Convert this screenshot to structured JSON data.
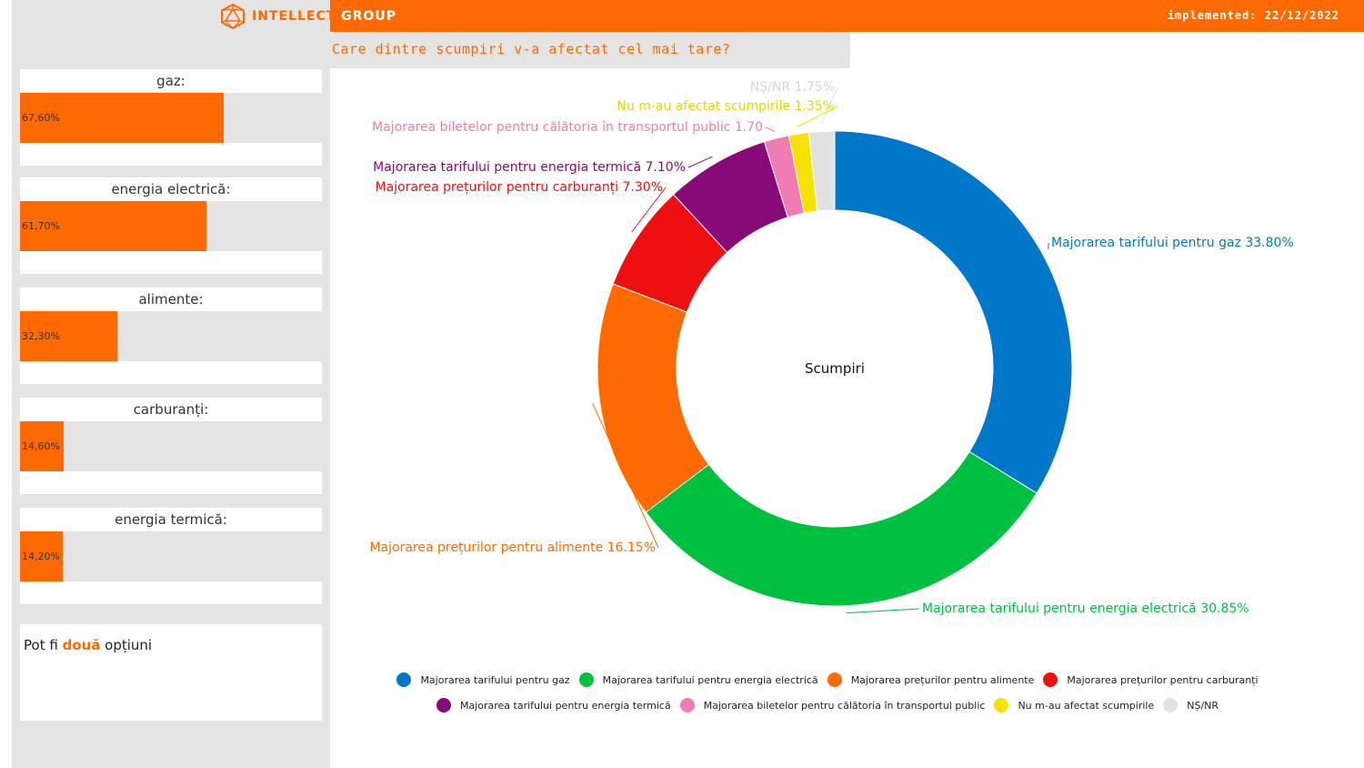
{
  "header": {
    "brand_part1": "INTELLECT",
    "brand_part2": "GROUP",
    "implemented": "implemented: 22/12/2022",
    "question": "Care dintre scumpiri v-a afectat cel mai tare?"
  },
  "kpis": [
    {
      "label": "gaz:",
      "value_text": "67,60%",
      "value": 67.6
    },
    {
      "label": "energia electrică:",
      "value_text": "61,70%",
      "value": 61.7
    },
    {
      "label": "alimente:",
      "value_text": "32,30%",
      "value": 32.3
    },
    {
      "label": "carburanți:",
      "value_text": "14,60%",
      "value": 14.6
    },
    {
      "label": "energia termică:",
      "value_text": "14,20%",
      "value": 14.2
    }
  ],
  "note": {
    "before": "Pot fi ",
    "highlight": "două",
    "after": " opțiuni"
  },
  "chart_data": {
    "type": "pie",
    "donut": true,
    "center_label": "Scumpiri",
    "slices": [
      {
        "name": "Majorarea tarifului pentru gaz",
        "value": 33.8,
        "label": "Majorarea tarifului pentru gaz 33.80%",
        "color": "#0077c8"
      },
      {
        "name": "Majorarea tarifului pentru energia electrică",
        "value": 30.85,
        "label": "Majorarea tarifului pentru energia electrică 30.85%",
        "color": "#00c040"
      },
      {
        "name": "Majorarea prețurilor pentru alimente",
        "value": 16.15,
        "label": "Majorarea prețurilor pentru alimente 16.15%",
        "color": "#ff6a00"
      },
      {
        "name": "Majorarea prețurilor pentru carburanți",
        "value": 7.3,
        "label": "Majorarea prețurilor pentru carburanți 7.30%",
        "color": "#ee1010"
      },
      {
        "name": "Majorarea tarifului pentru energia termică",
        "value": 7.1,
        "label": "Majorarea tarifului pentru energia termică 7.10%",
        "color": "#880a78"
      },
      {
        "name": "Majorarea biletelor pentru călătoria în transportul public",
        "value": 1.7,
        "label": "Majorarea biletelor pentru călătoria în transportul public 1.70",
        "color": "#f07cb4"
      },
      {
        "name": "Nu m-au afectat scumpirile",
        "value": 1.35,
        "label": "Nu m-au afectat scumpirile 1.35%",
        "color": "#f5e200"
      },
      {
        "name": "NȘ/NR",
        "value": 1.75,
        "label": "NȘ/NR 1.75%",
        "color": "#e1e1e1"
      }
    ]
  }
}
